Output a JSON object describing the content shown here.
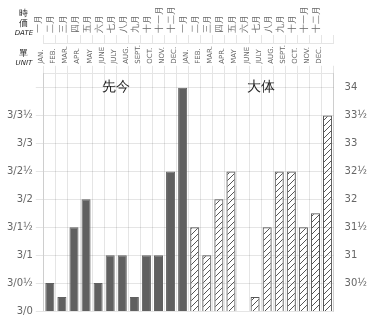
{
  "chart_data": {
    "type": "bar",
    "categories": [
      [
        "一月",
        "JAN."
      ],
      [
        "二月",
        "FEB."
      ],
      [
        "三月",
        "MAR."
      ],
      [
        "四月",
        "APR."
      ],
      [
        "五月",
        "MAY"
      ],
      [
        "六月",
        "JUNE"
      ],
      [
        "七月",
        "JULY"
      ],
      [
        "八月",
        "AUG."
      ],
      [
        "九月",
        "SEPT."
      ],
      [
        "十月",
        "OCT."
      ],
      [
        "十一月",
        "NOV."
      ],
      [
        "十二月",
        "DEC."
      ],
      [
        "一月",
        "JAN."
      ],
      [
        "二月",
        "FEB."
      ],
      [
        "三月",
        "MAR."
      ],
      [
        "四月",
        "APR."
      ],
      [
        "五月",
        "MAY"
      ],
      [
        "六月",
        "JUNE"
      ],
      [
        "七月",
        "JULY"
      ],
      [
        "八月",
        "AUG."
      ],
      [
        "九月",
        "SEPT."
      ],
      [
        "十月",
        "OCT."
      ],
      [
        "十一月",
        "NOV."
      ],
      [
        "十二月",
        "DEC."
      ]
    ],
    "xlabel": [
      [
        "時",
        "価",
        "DATE"
      ],
      [
        "單",
        "UNIT"
      ]
    ],
    "series": [
      {
        "color": "#606060",
        "values": [
          30.5,
          30.25,
          31.5,
          32.0,
          30.5,
          31.0,
          31.0,
          30.25,
          31.0,
          31.0,
          32.5,
          34.0,
          null,
          null,
          null,
          null,
          null,
          null,
          null,
          null,
          null,
          null,
          null,
          null
        ]
      },
      {
        "color": "#555555",
        "values": [
          null,
          null,
          null,
          null,
          null,
          null,
          null,
          null,
          null,
          null,
          null,
          null,
          31.5,
          31.0,
          32.0,
          32.5,
          30.0,
          30.25,
          31.5,
          32.5,
          32.5,
          31.5,
          31.75,
          33.5
        ]
      }
    ],
    "annotations": [
      "先今",
      "大体"
    ],
    "ylim": [
      30.0,
      34.25
    ],
    "yticks": [
      {
        "value": 30.0,
        "label": "3/0"
      },
      {
        "value": 30.5,
        "label": "3/0½"
      },
      {
        "value": 31.0,
        "label": "3/1"
      },
      {
        "value": 31.5,
        "label": "3/1½"
      },
      {
        "value": 32.0,
        "label": "3/2"
      },
      {
        "value": 32.5,
        "label": "3/2½"
      },
      {
        "value": 33.0,
        "label": "3/3"
      },
      {
        "value": 33.5,
        "label": "3/3½"
      },
      {
        "value": 34.0,
        "label": ""
      }
    ],
    "y2lim": [
      30.0,
      34.25
    ],
    "y2ticks": [
      {
        "value": 30.5,
        "label": "30½"
      },
      31,
      {
        "value": 31.5,
        "label": "31½"
      },
      32,
      {
        "value": 32.5,
        "label": "32½"
      },
      33,
      {
        "value": 33.5,
        "label": "33½"
      },
      34
    ],
    "grid": true
  }
}
